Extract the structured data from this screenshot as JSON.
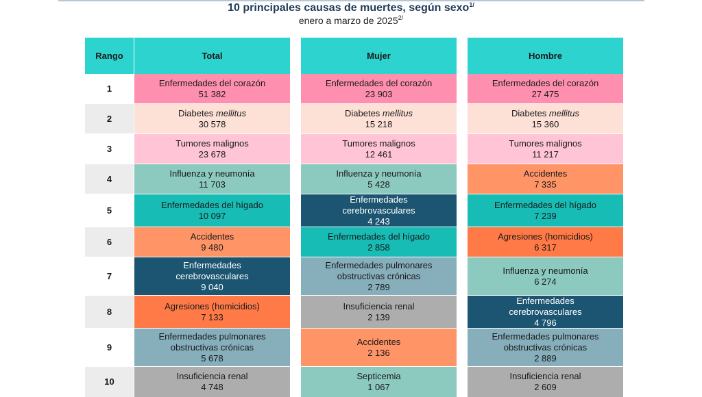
{
  "header": {
    "title": "10 principales causas de muertes, según sexo",
    "title_note": "1/",
    "subtitle": "enero a marzo de 2025",
    "subtitle_note": "2/"
  },
  "colors": {
    "header": "#2dd4cf",
    "Enfermedades del corazón": "#ff8fae",
    "Diabetes mellitus": "#fde0d6",
    "Tumores malignos": "#ffc4d6",
    "Influenza y neumonía": "#8cc9bf",
    "Enfermedades del hígado": "#17bcb5",
    "Accidentes": "#ff9466",
    "Enfermedades cerebrovasculares": "#1c5571",
    "Agresiones (homicidios)": "#ff7a47",
    "Enfermedades pulmonares obstructivas crónicas": "#86aebb",
    "Insuficiencia renal": "#adadad",
    "Septicemia": "#8cc9bf"
  },
  "chart_data": {
    "type": "table",
    "columns": [
      "Rango",
      "Total",
      "Mujer",
      "Hombre"
    ],
    "ranks": [
      "1",
      "2",
      "3",
      "4",
      "5",
      "6",
      "7",
      "8",
      "9",
      "10"
    ],
    "data": {
      "Total": [
        {
          "cause": "Enfermedades del corazón",
          "lines": [
            "Enfermedades del corazón"
          ],
          "value": "51 382"
        },
        {
          "cause": "Diabetes mellitus",
          "lines": [
            "Diabetes <i>mellitus</i>"
          ],
          "value": "30 578"
        },
        {
          "cause": "Tumores malignos",
          "lines": [
            "Tumores malignos"
          ],
          "value": "23 678"
        },
        {
          "cause": "Influenza y neumonía",
          "lines": [
            "Influenza y neumonía"
          ],
          "value": "11 703"
        },
        {
          "cause": "Enfermedades del hígado",
          "lines": [
            "Enfermedades del hígado"
          ],
          "value": "10 097"
        },
        {
          "cause": "Accidentes",
          "lines": [
            "Accidentes"
          ],
          "value": "9 480"
        },
        {
          "cause": "Enfermedades cerebrovasculares",
          "lines": [
            "Enfermedades",
            "cerebrovasculares"
          ],
          "value": "9 040"
        },
        {
          "cause": "Agresiones (homicidios)",
          "lines": [
            "Agresiones (homicidios)"
          ],
          "value": "7 133"
        },
        {
          "cause": "Enfermedades pulmonares obstructivas crónicas",
          "lines": [
            "Enfermedades pulmonares",
            "obstructivas crónicas"
          ],
          "value": "5 678"
        },
        {
          "cause": "Insuficiencia renal",
          "lines": [
            "Insuficiencia renal"
          ],
          "value": "4 748"
        }
      ],
      "Mujer": [
        {
          "cause": "Enfermedades del corazón",
          "lines": [
            "Enfermedades del corazón"
          ],
          "value": "23 903"
        },
        {
          "cause": "Diabetes mellitus",
          "lines": [
            "Diabetes <i>mellitus</i>"
          ],
          "value": "15 218"
        },
        {
          "cause": "Tumores malignos",
          "lines": [
            "Tumores malignos"
          ],
          "value": "12 461"
        },
        {
          "cause": "Influenza y neumonía",
          "lines": [
            "Influenza y neumonía"
          ],
          "value": "5 428"
        },
        {
          "cause": "Enfermedades cerebrovasculares",
          "lines": [
            "Enfermedades",
            "cerebrovasculares"
          ],
          "value": "4 243"
        },
        {
          "cause": "Enfermedades del hígado",
          "lines": [
            "Enfermedades del hígado"
          ],
          "value": "2 858"
        },
        {
          "cause": "Enfermedades pulmonares obstructivas crónicas",
          "lines": [
            "Enfermedades pulmonares",
            "obstructivas crónicas"
          ],
          "value": "2 789"
        },
        {
          "cause": "Insuficiencia renal",
          "lines": [
            "Insuficiencia renal"
          ],
          "value": "2 139"
        },
        {
          "cause": "Accidentes",
          "lines": [
            "Accidentes"
          ],
          "value": "2 136"
        },
        {
          "cause": "Septicemia",
          "lines": [
            "Septicemia"
          ],
          "value": "1 067"
        }
      ],
      "Hombre": [
        {
          "cause": "Enfermedades del corazón",
          "lines": [
            "Enfermedades del corazón"
          ],
          "value": "27 475"
        },
        {
          "cause": "Diabetes mellitus",
          "lines": [
            "Diabetes <i>mellitus</i>"
          ],
          "value": "15 360"
        },
        {
          "cause": "Tumores malignos",
          "lines": [
            "Tumores malignos"
          ],
          "value": "11 217"
        },
        {
          "cause": "Accidentes",
          "lines": [
            "Accidentes"
          ],
          "value": "7 335"
        },
        {
          "cause": "Enfermedades del hígado",
          "lines": [
            "Enfermedades del hígado"
          ],
          "value": "7 239"
        },
        {
          "cause": "Agresiones (homicidios)",
          "lines": [
            "Agresiones (homicidios)"
          ],
          "value": "6 317"
        },
        {
          "cause": "Influenza y neumonía",
          "lines": [
            "Influenza y neumonía"
          ],
          "value": "6 274"
        },
        {
          "cause": "Enfermedades cerebrovasculares",
          "lines": [
            "Enfermedades",
            "cerebrovasculares"
          ],
          "value": "4 796"
        },
        {
          "cause": "Enfermedades pulmonares obstructivas crónicas",
          "lines": [
            "Enfermedades pulmonares",
            "obstructivas crónicas"
          ],
          "value": "2 889"
        },
        {
          "cause": "Insuficiencia renal",
          "lines": [
            "Insuficiencia renal"
          ],
          "value": "2 609"
        }
      ]
    }
  }
}
